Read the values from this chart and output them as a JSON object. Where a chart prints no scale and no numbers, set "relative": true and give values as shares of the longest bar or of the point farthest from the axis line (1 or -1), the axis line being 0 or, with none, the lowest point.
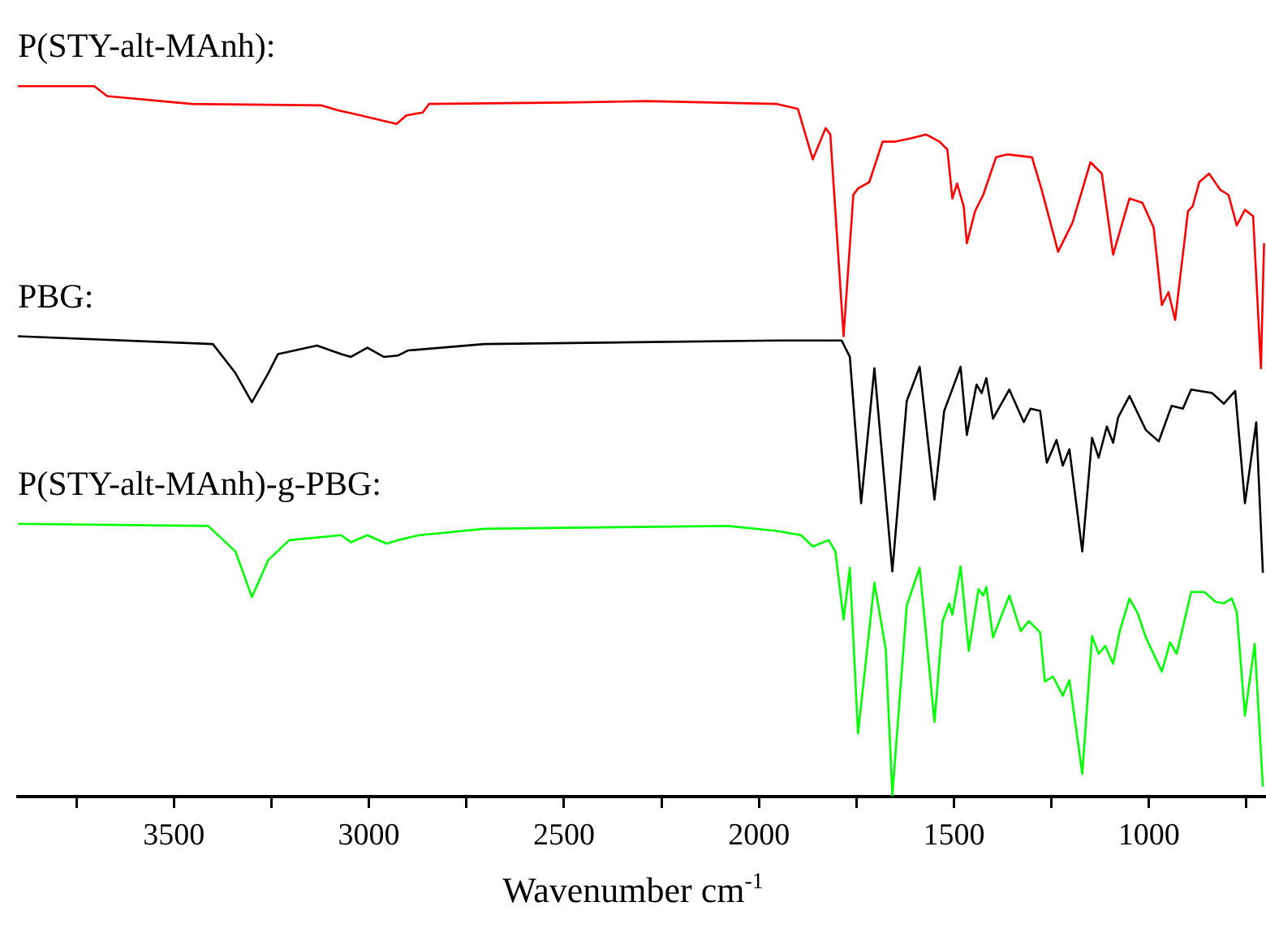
{
  "chart_data": {
    "type": "line",
    "relative": true,
    "xlabel": "Wavenumber cm$^{-1}$",
    "xlim": [
      3900,
      700
    ],
    "xticks": [
      {
        "value": 3750,
        "label": null
      },
      3500,
      {
        "value": 3250,
        "label": null
      },
      3000,
      {
        "value": 2750,
        "label": null
      },
      2500,
      {
        "value": 2250,
        "label": null
      },
      2000,
      {
        "value": 1750,
        "label": null
      },
      1500,
      {
        "value": 1250,
        "label": null
      },
      1000,
      {
        "value": 750,
        "label": null
      }
    ],
    "series": [
      {
        "name": "P(STY-alt-MAnh):",
        "color": "#ff0000",
        "x": [
          3900,
          3704,
          3671,
          3454,
          3121,
          3079,
          3037,
          2929,
          2904,
          2862,
          2846,
          2496,
          2287,
          1954,
          1900,
          1862,
          1829,
          1817,
          1783,
          1758,
          1746,
          1717,
          1683,
          1650,
          1608,
          1571,
          1537,
          1517,
          1504,
          1492,
          1475,
          1467,
          1446,
          1425,
          1392,
          1362,
          1300,
          1275,
          1233,
          1196,
          1150,
          1121,
          1092,
          1050,
          1017,
          988,
          967,
          950,
          933,
          900,
          888,
          871,
          846,
          817,
          796,
          775,
          754,
          733,
          713,
          705
        ],
        "values": [
          1.0,
          1.0,
          0.986,
          0.975,
          0.973,
          0.966,
          0.961,
          0.947,
          0.959,
          0.963,
          0.975,
          0.977,
          0.979,
          0.975,
          0.968,
          0.897,
          0.941,
          0.932,
          0.648,
          0.847,
          0.856,
          0.865,
          0.922,
          0.922,
          0.927,
          0.932,
          0.922,
          0.911,
          0.842,
          0.863,
          0.831,
          0.779,
          0.824,
          0.847,
          0.9,
          0.904,
          0.9,
          0.854,
          0.767,
          0.808,
          0.893,
          0.877,
          0.763,
          0.842,
          0.836,
          0.801,
          0.692,
          0.71,
          0.671,
          0.824,
          0.831,
          0.865,
          0.877,
          0.854,
          0.847,
          0.804,
          0.826,
          0.817,
          0.603,
          0.779
        ]
      },
      {
        "name": "PBG:",
        "color": "#000000",
        "x": [
          3900,
          3400,
          3342,
          3300,
          3258,
          3233,
          3133,
          3071,
          3046,
          3004,
          2962,
          2925,
          2900,
          2704,
          1954,
          1788,
          1767,
          1738,
          1704,
          1658,
          1621,
          1588,
          1550,
          1525,
          1508,
          1483,
          1467,
          1442,
          1429,
          1417,
          1400,
          1358,
          1321,
          1304,
          1279,
          1262,
          1237,
          1221,
          1204,
          1171,
          1146,
          1129,
          1108,
          1092,
          1079,
          1050,
          1008,
          975,
          942,
          913,
          892,
          838,
          808,
          779,
          754,
          725,
          708
        ],
        "values": [
          0.648,
          0.637,
          0.596,
          0.555,
          0.596,
          0.623,
          0.635,
          0.623,
          0.619,
          0.632,
          0.619,
          0.621,
          0.628,
          0.637,
          0.642,
          0.642,
          0.619,
          0.413,
          0.603,
          0.317,
          0.557,
          0.605,
          0.418,
          0.543,
          0.568,
          0.605,
          0.509,
          0.58,
          0.568,
          0.589,
          0.532,
          0.573,
          0.527,
          0.546,
          0.543,
          0.47,
          0.502,
          0.466,
          0.489,
          0.345,
          0.505,
          0.477,
          0.521,
          0.498,
          0.534,
          0.564,
          0.516,
          0.5,
          0.55,
          0.546,
          0.573,
          0.568,
          0.553,
          0.571,
          0.413,
          0.527,
          0.315
        ]
      },
      {
        "name": "P(STY-alt-MAnh)-g-PBG:",
        "color": "#00ff00",
        "x": [
          3900,
          3412,
          3342,
          3300,
          3258,
          3204,
          3071,
          3046,
          3004,
          2954,
          2925,
          2871,
          2704,
          2079,
          1954,
          1892,
          1862,
          1821,
          1804,
          1783,
          1767,
          1746,
          1704,
          1675,
          1658,
          1621,
          1588,
          1550,
          1529,
          1512,
          1504,
          1483,
          1462,
          1437,
          1425,
          1417,
          1400,
          1358,
          1329,
          1308,
          1279,
          1267,
          1246,
          1221,
          1204,
          1171,
          1146,
          1129,
          1112,
          1092,
          1075,
          1050,
          1029,
          1008,
          967,
          946,
          929,
          892,
          858,
          829,
          808,
          788,
          775,
          754,
          729,
          708
        ],
        "values": [
          0.384,
          0.381,
          0.345,
          0.281,
          0.333,
          0.361,
          0.368,
          0.358,
          0.368,
          0.356,
          0.361,
          0.368,
          0.377,
          0.381,
          0.374,
          0.368,
          0.352,
          0.361,
          0.345,
          0.249,
          0.322,
          0.089,
          0.301,
          0.208,
          0.002,
          0.269,
          0.322,
          0.105,
          0.247,
          0.272,
          0.256,
          0.324,
          0.205,
          0.292,
          0.283,
          0.295,
          0.224,
          0.283,
          0.233,
          0.247,
          0.231,
          0.162,
          0.169,
          0.142,
          0.164,
          0.032,
          0.226,
          0.201,
          0.212,
          0.187,
          0.233,
          0.279,
          0.258,
          0.224,
          0.176,
          0.217,
          0.201,
          0.288,
          0.288,
          0.274,
          0.272,
          0.279,
          0.26,
          0.114,
          0.215,
          0.014
        ]
      }
    ]
  }
}
